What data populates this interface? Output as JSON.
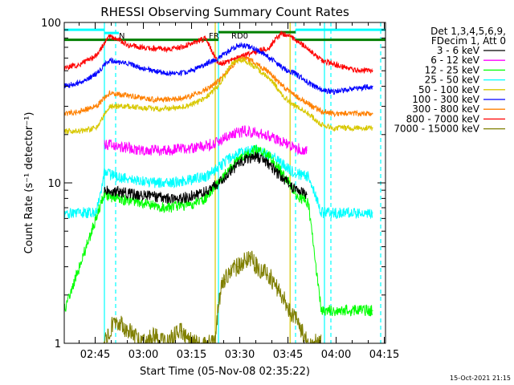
{
  "chart_data": {
    "type": "line",
    "title": "RHESSI Observing Summary Count Rates",
    "xlabel": "Start Time (05-Nov-08 02:35:22)",
    "ylabel": "Count Rate (s⁻¹ detector⁻¹)",
    "footer": "15-Oct-2021 21:15",
    "y_scale": "log",
    "ylim": [
      1,
      100
    ],
    "y_ticks": [
      {
        "value": 1,
        "label": "1"
      },
      {
        "value": 10,
        "label": "10"
      },
      {
        "value": 100,
        "label": "100"
      }
    ],
    "x_unit": "minutes since 02:35:22",
    "xlim": [
      0,
      100
    ],
    "x_ticks": [
      {
        "value": 9.63,
        "label": "02:45"
      },
      {
        "value": 24.63,
        "label": "03:00"
      },
      {
        "value": 39.63,
        "label": "03:15"
      },
      {
        "value": 54.63,
        "label": "03:30"
      },
      {
        "value": 69.63,
        "label": "03:45"
      },
      {
        "value": 84.63,
        "label": "04:00"
      },
      {
        "value": 99.63,
        "label": "04:15"
      }
    ],
    "legend_header": [
      "Det 1,3,4,5,6,9,",
      "FDecim 1, Att 0"
    ],
    "legend_position": "right",
    "series": [
      {
        "name": "3 - 6 keV",
        "color": "#000000",
        "x": [
          12.5,
          16,
          20,
          24,
          28,
          32,
          36,
          40,
          44,
          48,
          52,
          56,
          60,
          64,
          68,
          72,
          75.5
        ],
        "y": [
          9.2,
          8.8,
          8.6,
          8.4,
          8.2,
          8.0,
          8.0,
          8.3,
          8.8,
          10.0,
          12.0,
          14.0,
          14.5,
          13.0,
          10.5,
          9.0,
          8.5
        ]
      },
      {
        "name": "6 - 12 keV",
        "color": "#ff00ff",
        "x": [
          12.5,
          16,
          20,
          24,
          28,
          32,
          36,
          40,
          44,
          48,
          52,
          56,
          60,
          64,
          68,
          72,
          75.5
        ],
        "y": [
          17.5,
          17.0,
          16.5,
          16.0,
          16.0,
          16.0,
          16.2,
          16.5,
          17.0,
          18.0,
          20.0,
          21.0,
          20.5,
          19.5,
          18.0,
          16.5,
          16.0
        ]
      },
      {
        "name": "12 - 25 keV",
        "color": "#00ff00",
        "x": [
          0,
          12.5,
          16,
          20,
          24,
          28,
          32,
          36,
          40,
          44,
          48,
          52,
          56,
          60,
          64,
          68,
          72,
          76,
          80,
          84,
          88,
          92,
          96
        ],
        "y": [
          1.6,
          8.5,
          8.0,
          7.8,
          7.5,
          7.2,
          7.0,
          7.2,
          7.4,
          8.0,
          10.0,
          12.5,
          15.0,
          16.0,
          14.5,
          11.5,
          8.5,
          7.5,
          1.6,
          1.6,
          1.6,
          1.6,
          1.6
        ]
      },
      {
        "name": "25 - 50 keV",
        "color": "#00ffff",
        "x": [
          0,
          5,
          10,
          12.5,
          16,
          20,
          24,
          28,
          32,
          36,
          40,
          44,
          48,
          52,
          56,
          60,
          64,
          68,
          72,
          76,
          80,
          84,
          88,
          92,
          96
        ],
        "y": [
          6.5,
          6.5,
          6.5,
          11.5,
          11.0,
          10.5,
          10.2,
          10.0,
          10.0,
          10.2,
          10.5,
          11.0,
          12.5,
          14.5,
          15.5,
          16.0,
          15.0,
          13.0,
          11.5,
          11.0,
          6.5,
          6.5,
          6.5,
          6.5,
          6.5
        ]
      },
      {
        "name": "50 - 100 keV",
        "color": "#d8c800",
        "x": [
          0,
          5,
          10,
          14,
          20,
          24,
          28,
          32,
          36,
          40,
          44,
          48,
          52,
          54,
          56,
          58,
          60,
          62,
          64,
          68,
          72,
          76,
          80,
          84,
          88,
          92,
          96
        ],
        "y": [
          21,
          21,
          22,
          30,
          30,
          29.5,
          29,
          29,
          29.5,
          31,
          34,
          40,
          55,
          58,
          58,
          55,
          52,
          48,
          45,
          35,
          30,
          27,
          23,
          22,
          22,
          22,
          22
        ]
      },
      {
        "name": "100 - 300 keV",
        "color": "#0000ff",
        "x": [
          0,
          5,
          10,
          14,
          20,
          24,
          28,
          32,
          36,
          40,
          44,
          48,
          52,
          54,
          56,
          58,
          60,
          62,
          64,
          68,
          72,
          76,
          80,
          84,
          88,
          92,
          96
        ],
        "y": [
          40,
          42,
          48,
          58,
          55,
          52,
          50,
          48,
          48,
          50,
          55,
          60,
          68,
          72,
          72,
          70,
          67,
          64,
          60,
          52,
          48,
          42,
          38,
          37,
          38,
          39,
          40
        ]
      },
      {
        "name": "300 - 800 keV",
        "color": "#ff8000",
        "x": [
          0,
          5,
          10,
          14,
          20,
          24,
          28,
          32,
          36,
          40,
          44,
          48,
          52,
          54,
          56,
          58,
          60,
          62,
          64,
          68,
          72,
          76,
          80,
          84,
          88,
          92,
          96
        ],
        "y": [
          27,
          28,
          30,
          36,
          35,
          34,
          33,
          33,
          33.5,
          35,
          38,
          43,
          53,
          58,
          60,
          58,
          55,
          52,
          48,
          40,
          35,
          31,
          28,
          27,
          27,
          27,
          27
        ]
      },
      {
        "name": "800 - 7000 keV",
        "color": "#ff0000",
        "x": [
          0,
          5,
          10,
          14,
          17,
          20,
          24,
          28,
          32,
          36,
          40,
          44,
          48,
          52,
          56,
          60,
          64,
          66,
          68,
          70,
          72,
          76,
          80,
          84,
          88,
          92,
          96
        ],
        "y": [
          52,
          55,
          62,
          82,
          78,
          72,
          70,
          69,
          68,
          70,
          74,
          80,
          55,
          58,
          62,
          66,
          70,
          80,
          85,
          82,
          78,
          68,
          58,
          55,
          52,
          50,
          50
        ]
      },
      {
        "name": "7000 - 15000 keV",
        "color": "#7f7f00",
        "x": [
          12,
          16,
          20,
          24,
          28,
          32,
          36,
          40,
          44,
          47,
          48,
          49,
          50,
          52,
          54,
          56,
          58,
          60,
          62,
          64,
          66,
          68,
          70,
          72,
          74,
          76,
          78,
          80
        ],
        "y": [
          1,
          1.4,
          1.2,
          1,
          1.1,
          1,
          1.2,
          1,
          1,
          1,
          1.8,
          2.2,
          2.5,
          2.8,
          3.0,
          3.2,
          3.4,
          3.0,
          2.8,
          2.6,
          2.2,
          2.0,
          1.6,
          1.4,
          1.2,
          1,
          1,
          1
        ]
      }
    ],
    "reference_lines": [
      {
        "name": "upper-dark-green",
        "color": "#007f00",
        "segments": [
          [
            0,
            48,
            78
          ],
          [
            48,
            72,
            87
          ],
          [
            72,
            100,
            78
          ]
        ]
      },
      {
        "name": "upper-cyan",
        "color": "#00ffff",
        "segments": [
          [
            0,
            12.5,
            90
          ],
          [
            12.5,
            17,
            86
          ],
          [
            72,
            100,
            90
          ]
        ]
      }
    ],
    "vertical_markers": [
      {
        "x": 12.5,
        "color": "#00ffff",
        "style": "solid"
      },
      {
        "x": 16,
        "color": "#00ffff",
        "style": "dashed"
      },
      {
        "x": 47,
        "color": "#d8c800",
        "style": "solid"
      },
      {
        "x": 48,
        "color": "#00ffff",
        "style": "solid"
      },
      {
        "x": 70.3,
        "color": "#d8c800",
        "style": "solid"
      },
      {
        "x": 72,
        "color": "#00ffff",
        "style": "dashed"
      },
      {
        "x": 81,
        "color": "#00ffff",
        "style": "solid"
      },
      {
        "x": 83,
        "color": "#00ffff",
        "style": "dashed"
      },
      {
        "x": 98.5,
        "color": "#00ffff",
        "style": "dashed"
      }
    ],
    "annotations": [
      {
        "text": "N",
        "x": 17,
        "color": "#00ffff"
      },
      {
        "text": "RD0",
        "x": 52,
        "color": "#008000"
      },
      {
        "text": "FR",
        "x": 45,
        "color": "#008000"
      }
    ]
  }
}
